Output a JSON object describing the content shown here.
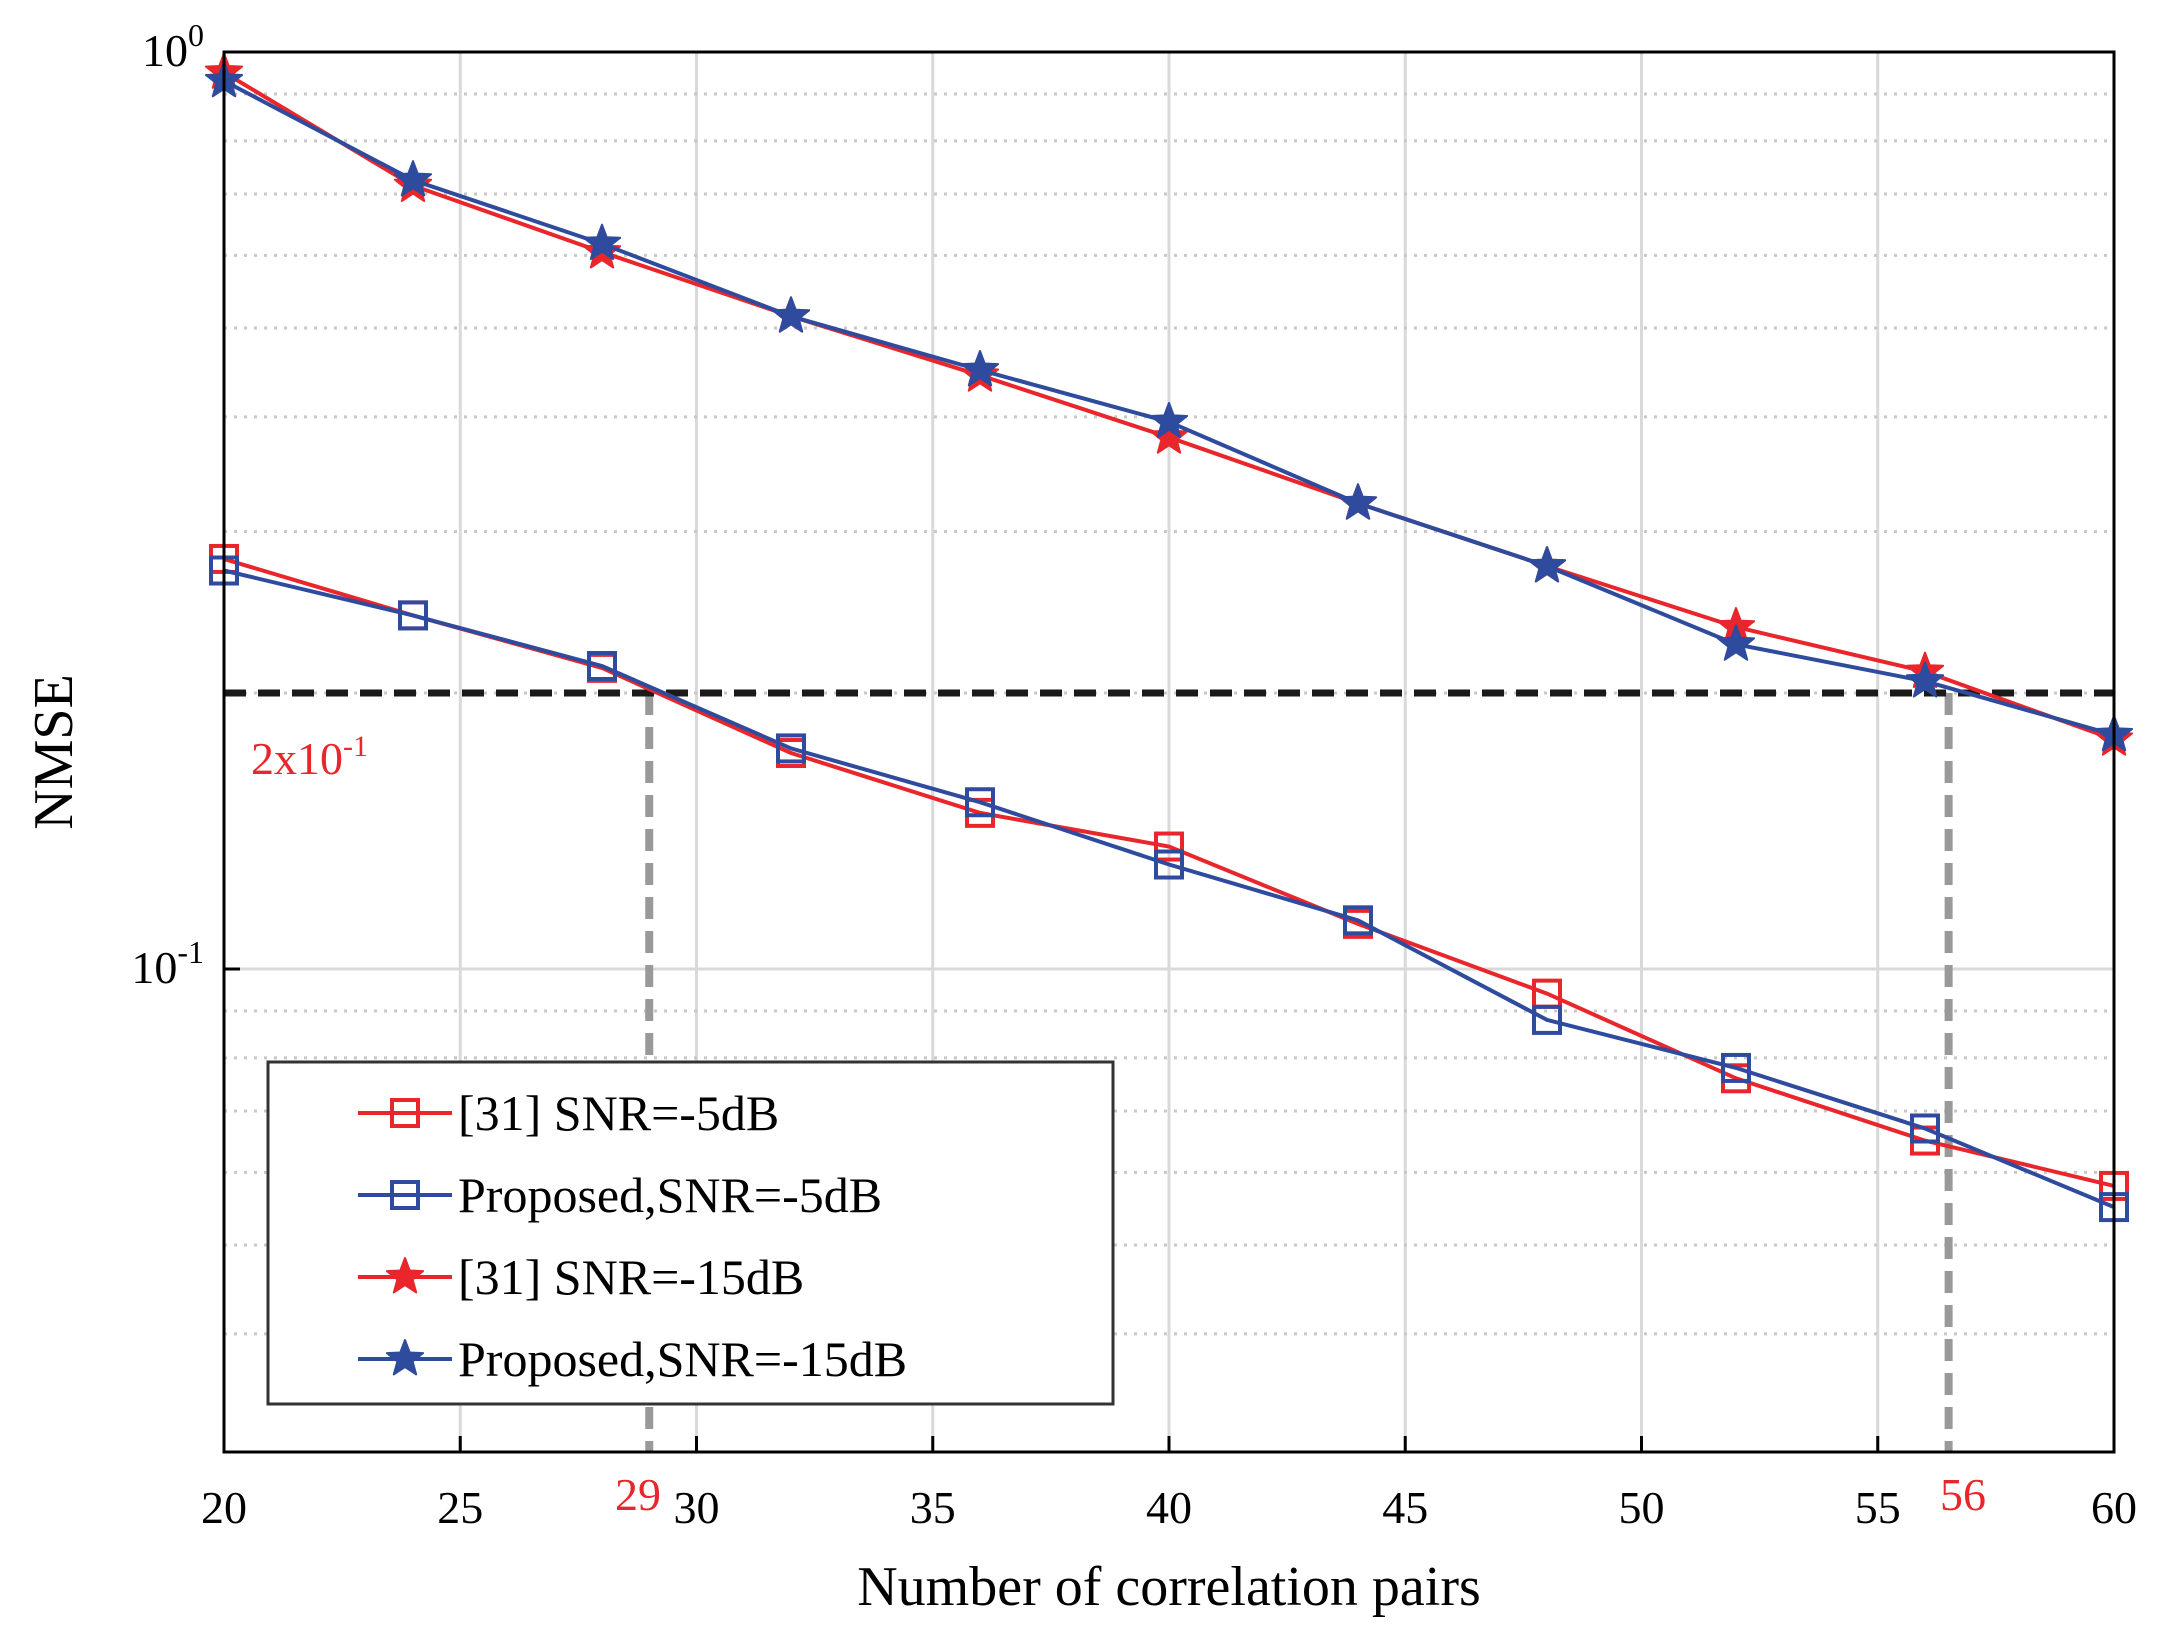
{
  "chart_data": {
    "type": "line",
    "title": "",
    "xlabel": "Number of correlation pairs",
    "ylabel": "NMSE",
    "xlim": [
      20,
      60
    ],
    "ylim": [
      0.04,
      1.0
    ],
    "yscale": "log",
    "grid": true,
    "legend_position": "bottom-left",
    "x_ticks": [
      "20",
      "25",
      "30",
      "35",
      "40",
      "45",
      "50",
      "55",
      "60"
    ],
    "y_ticks": [
      {
        "value": 1.0,
        "base": "10",
        "exp": "0"
      },
      {
        "value": 0.1,
        "base": "10",
        "exp": "-1"
      }
    ],
    "x": [
      20,
      24,
      28,
      32,
      36,
      40,
      44,
      48,
      52,
      56,
      60
    ],
    "series": [
      {
        "name": "[31] SNR=-5dB",
        "color": "#e8262b",
        "marker": "square",
        "values": [
          0.28,
          0.243,
          0.213,
          0.172,
          0.148,
          0.136,
          0.112,
          0.094,
          0.076,
          0.065,
          0.058
        ]
      },
      {
        "name": "Proposed,SNR=-5dB",
        "color": "#2e4b9e",
        "marker": "square",
        "values": [
          0.272,
          0.243,
          0.214,
          0.174,
          0.152,
          0.13,
          0.113,
          0.088,
          0.078,
          0.067,
          0.055
        ]
      },
      {
        "name": "[31] SNR=-15dB",
        "color": "#e8262b",
        "marker": "star",
        "values": [
          0.95,
          0.715,
          0.605,
          0.515,
          0.444,
          0.38,
          0.322,
          0.275,
          0.236,
          0.211,
          0.178
        ]
      },
      {
        "name": "Proposed,SNR=-15dB",
        "color": "#2e4b9e",
        "marker": "star",
        "values": [
          0.93,
          0.725,
          0.618,
          0.515,
          0.45,
          0.395,
          0.322,
          0.275,
          0.226,
          0.206,
          0.18
        ]
      }
    ],
    "reference_line": {
      "value": 0.2,
      "color": "#1a1a1a"
    },
    "annotations": [
      {
        "text": "2x10",
        "superscript": "-1",
        "color": "#e8262b"
      },
      {
        "text": "29",
        "x": 29,
        "color": "#e8262b"
      },
      {
        "text": "56",
        "x": 56.5,
        "color": "#e8262b"
      }
    ],
    "guide_color": "#999999"
  }
}
